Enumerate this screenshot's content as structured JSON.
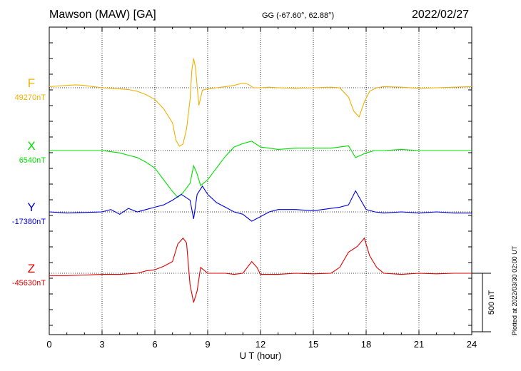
{
  "header": {
    "station": "Mawson (MAW)  [GA]",
    "coords": "GG (-67.60°,  62.88°)",
    "date": "2022/02/27"
  },
  "footer": {
    "plotted": "Plotted at 2022/03/30 02:00 UT"
  },
  "chart_data": {
    "type": "line",
    "xlabel": "U T (hour)",
    "xlim": [
      0,
      24
    ],
    "xticks": [
      0,
      3,
      6,
      9,
      12,
      15,
      18,
      21,
      24
    ],
    "grid": true,
    "scale_bar": {
      "label": "500 nT",
      "value_nT": 500
    },
    "series": [
      {
        "name": "F",
        "baseline_label": "49270nT",
        "baseline_nT": 49270,
        "color": "#f0b000",
        "points": [
          [
            0,
            10
          ],
          [
            0.5,
            15
          ],
          [
            1,
            20
          ],
          [
            1.5,
            25
          ],
          [
            2,
            20
          ],
          [
            2.5,
            10
          ],
          [
            3,
            0
          ],
          [
            3.5,
            -5
          ],
          [
            4,
            -10
          ],
          [
            4.5,
            -15
          ],
          [
            5,
            -30
          ],
          [
            5.5,
            -60
          ],
          [
            6,
            -100
          ],
          [
            6.5,
            -180
          ],
          [
            7,
            -300
          ],
          [
            7.2,
            -450
          ],
          [
            7.4,
            -500
          ],
          [
            7.6,
            -480
          ],
          [
            7.8,
            -350
          ],
          [
            8.0,
            -100
          ],
          [
            8.1,
            150
          ],
          [
            8.2,
            250
          ],
          [
            8.3,
            180
          ],
          [
            8.5,
            -150
          ],
          [
            8.7,
            -20
          ],
          [
            9,
            -10
          ],
          [
            9.5,
            0
          ],
          [
            10,
            10
          ],
          [
            10.5,
            20
          ],
          [
            11,
            40
          ],
          [
            11.3,
            30
          ],
          [
            11.6,
            0
          ],
          [
            12,
            0
          ],
          [
            12.5,
            5
          ],
          [
            13,
            0
          ],
          [
            14,
            -5
          ],
          [
            15,
            0
          ],
          [
            16,
            5
          ],
          [
            16.5,
            0
          ],
          [
            17,
            -80
          ],
          [
            17.3,
            -200
          ],
          [
            17.6,
            -250
          ],
          [
            17.9,
            -120
          ],
          [
            18.2,
            -30
          ],
          [
            18.6,
            0
          ],
          [
            19,
            10
          ],
          [
            20,
            5
          ],
          [
            21,
            -5
          ],
          [
            22,
            0
          ],
          [
            23,
            5
          ],
          [
            24,
            10
          ]
        ]
      },
      {
        "name": "X",
        "baseline_label": "6540nT",
        "baseline_nT": 6540,
        "color": "#00e000",
        "points": [
          [
            0,
            0
          ],
          [
            1,
            0
          ],
          [
            2,
            0
          ],
          [
            3,
            0
          ],
          [
            3.5,
            -10
          ],
          [
            4,
            -20
          ],
          [
            4.5,
            -40
          ],
          [
            5,
            -60
          ],
          [
            5.5,
            -100
          ],
          [
            6,
            -150
          ],
          [
            6.5,
            -250
          ],
          [
            7,
            -350
          ],
          [
            7.3,
            -400
          ],
          [
            7.6,
            -360
          ],
          [
            8,
            -280
          ],
          [
            8.2,
            -130
          ],
          [
            8.4,
            -200
          ],
          [
            8.6,
            -300
          ],
          [
            9,
            -250
          ],
          [
            9.5,
            -150
          ],
          [
            10,
            -50
          ],
          [
            10.5,
            30
          ],
          [
            11,
            60
          ],
          [
            11.5,
            80
          ],
          [
            12,
            30
          ],
          [
            12.5,
            20
          ],
          [
            13,
            10
          ],
          [
            14,
            20
          ],
          [
            15,
            20
          ],
          [
            16,
            20
          ],
          [
            17,
            40
          ],
          [
            17.4,
            -60
          ],
          [
            17.7,
            -40
          ],
          [
            18,
            -20
          ],
          [
            18.5,
            0
          ],
          [
            19,
            0
          ],
          [
            20,
            10
          ],
          [
            21,
            0
          ],
          [
            22,
            0
          ],
          [
            23,
            0
          ],
          [
            24,
            0
          ]
        ]
      },
      {
        "name": "Y",
        "baseline_label": "-17380nT",
        "baseline_nT": -17380,
        "color": "#0000e0",
        "points": [
          [
            0,
            0
          ],
          [
            1,
            -10
          ],
          [
            2,
            -5
          ],
          [
            3,
            0
          ],
          [
            3.5,
            20
          ],
          [
            4,
            -20
          ],
          [
            4.5,
            30
          ],
          [
            5,
            0
          ],
          [
            5.5,
            20
          ],
          [
            6,
            40
          ],
          [
            6.5,
            60
          ],
          [
            7,
            100
          ],
          [
            7.5,
            150
          ],
          [
            8,
            100
          ],
          [
            8.2,
            -60
          ],
          [
            8.4,
            150
          ],
          [
            8.7,
            220
          ],
          [
            9,
            150
          ],
          [
            9.5,
            80
          ],
          [
            10,
            40
          ],
          [
            10.5,
            0
          ],
          [
            11,
            -20
          ],
          [
            11.5,
            -80
          ],
          [
            12,
            -40
          ],
          [
            12.5,
            0
          ],
          [
            13,
            20
          ],
          [
            14,
            20
          ],
          [
            15,
            10
          ],
          [
            16,
            30
          ],
          [
            16.5,
            40
          ],
          [
            17,
            60
          ],
          [
            17.4,
            180
          ],
          [
            17.7,
            100
          ],
          [
            18,
            20
          ],
          [
            18.5,
            0
          ],
          [
            19,
            -10
          ],
          [
            20,
            0
          ],
          [
            21,
            -10
          ],
          [
            22,
            0
          ],
          [
            23,
            -10
          ],
          [
            24,
            -10
          ]
        ]
      },
      {
        "name": "Z",
        "baseline_label": "-45630nT",
        "baseline_nT": -45630,
        "color": "#e00000",
        "points": [
          [
            0,
            -20
          ],
          [
            1,
            -20
          ],
          [
            2,
            -15
          ],
          [
            3,
            -10
          ],
          [
            4,
            -10
          ],
          [
            5,
            0
          ],
          [
            5.5,
            20
          ],
          [
            6,
            30
          ],
          [
            6.5,
            60
          ],
          [
            7,
            100
          ],
          [
            7.3,
            250
          ],
          [
            7.6,
            300
          ],
          [
            7.8,
            260
          ],
          [
            8.0,
            -100
          ],
          [
            8.2,
            -250
          ],
          [
            8.4,
            -150
          ],
          [
            8.6,
            50
          ],
          [
            9,
            0
          ],
          [
            9.5,
            0
          ],
          [
            10,
            0
          ],
          [
            10.5,
            -10
          ],
          [
            11,
            0
          ],
          [
            11.5,
            100
          ],
          [
            11.8,
            50
          ],
          [
            12,
            -10
          ],
          [
            13,
            -10
          ],
          [
            14,
            0
          ],
          [
            15,
            -5
          ],
          [
            16,
            0
          ],
          [
            16.5,
            50
          ],
          [
            17,
            180
          ],
          [
            17.5,
            230
          ],
          [
            17.9,
            300
          ],
          [
            18.2,
            150
          ],
          [
            18.6,
            50
          ],
          [
            19,
            0
          ],
          [
            20,
            -10
          ],
          [
            21,
            0
          ],
          [
            22,
            -5
          ],
          [
            23,
            0
          ],
          [
            24,
            0
          ]
        ]
      }
    ]
  }
}
